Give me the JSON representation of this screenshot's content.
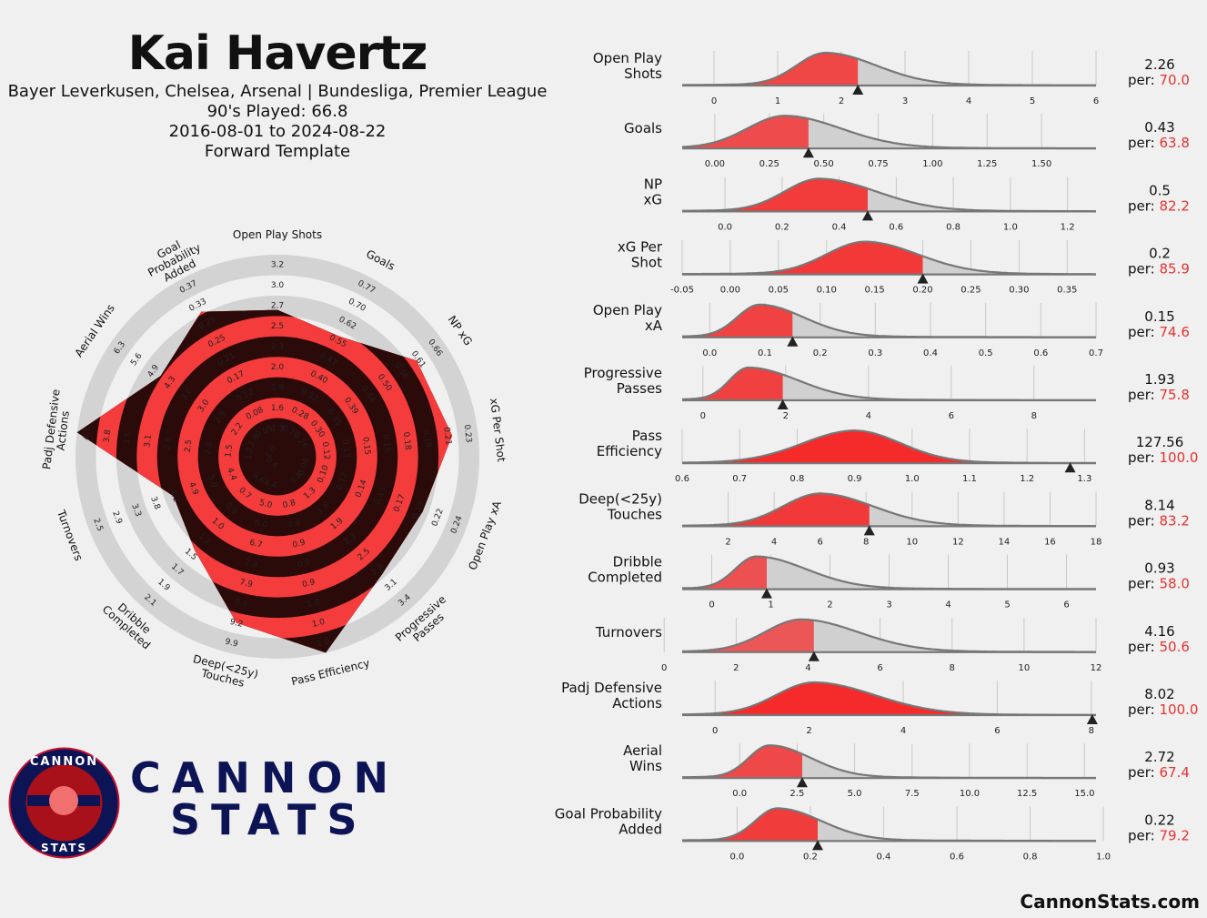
{
  "header": {
    "player": "Kai Havertz",
    "clubs_leagues": "Bayer Leverkusen, Chelsea, Arsenal | Bundesliga, Premier League",
    "nineties": "90's Played: 66.8",
    "dates": "2016-08-01 to 2024-08-22",
    "template": "Forward Template"
  },
  "brand": {
    "line1": "CANNON",
    "line2": "STATS",
    "badge_top": "CANNON",
    "badge_bottom": "STATS",
    "site": "CannonStats.com"
  },
  "colors": {
    "background": "#f0f0f0",
    "radar_fill": "#f53c3c",
    "radar_dark": "#2b0a0a",
    "ring_grey": "#d3d3d3",
    "brand_navy": "#0d1456",
    "badge_red": "#a8101a"
  },
  "chart_data": [
    {
      "type": "radar",
      "metrics": [
        {
          "label": "Open Play Shots",
          "ticks": [
            "1.3",
            "1.6",
            "1.9",
            "2.0",
            "2.3",
            "2.5",
            "2.7",
            "3.0",
            "3.2"
          ],
          "percentile": 70.0
        },
        {
          "label": "Goals",
          "ticks": [
            "0.25",
            "0.28",
            "0.32",
            "0.40",
            "0.47",
            "0.55",
            "0.62",
            "0.70",
            "0.77"
          ],
          "percentile": 63.8
        },
        {
          "label": "NP xG",
          "ticks": [
            "0.26",
            "0.30",
            "0.35",
            "0.39",
            "0.44",
            "0.50",
            "0.56",
            "0.61",
            "0.66"
          ],
          "percentile": 82.2
        },
        {
          "label": "xG Per Shot",
          "ticks": [
            "0.12",
            "0.13",
            "0.15",
            "0.16",
            "0.18",
            "0.19",
            "0.21",
            "0.23"
          ],
          "percentile": 85.9
        },
        {
          "label": "Open Play xA",
          "ticks": [
            "0.08",
            "0.10",
            "0.12",
            "0.14",
            "0.15",
            "0.17",
            "0.19",
            "0.22",
            "0.24"
          ],
          "percentile": 74.6
        },
        {
          "label": "Progressive\nPasses",
          "ticks": [
            "0.8",
            "1.3",
            "1.6",
            "1.9",
            "2.1",
            "2.5",
            "2.8",
            "3.1",
            "3.4"
          ],
          "percentile": 75.8
        },
        {
          "label": "Pass Efficiency",
          "ticks": [
            "0.8",
            "0.8",
            "0.9",
            "0.9",
            "0.9",
            "1.0",
            "1.0",
            "1.0"
          ],
          "percentile": 100.0
        },
        {
          "label": "Deep(<25y)\nTouches",
          "ticks": [
            "4.4",
            "5.0",
            "6.0",
            "6.7",
            "7.3",
            "7.9",
            "8.6",
            "9.2",
            "9.9"
          ],
          "percentile": 83.2
        },
        {
          "label": "Dribble\nCompleted",
          "ticks": [
            "0.4",
            "0.6",
            "0.7",
            "0.9",
            "1.0",
            "1.2",
            "1.5",
            "1.7",
            "1.9",
            "2.1"
          ],
          "percentile": 58.0
        },
        {
          "label": "Turnovers",
          "ticks": [
            "4.4",
            "5.0",
            "4.9",
            "4.2",
            "3.8",
            "3.3",
            "2.9",
            "2.5"
          ],
          "percentile": 50.6
        },
        {
          "label": "Padj Defensive\nActions",
          "ticks": [
            "1.2",
            "1.5",
            "2.0",
            "2.5",
            "2.8",
            "3.1",
            "3.5",
            "3.8",
            "4.1"
          ],
          "percentile": 100.0
        },
        {
          "label": "Aerial Wins",
          "ticks": [
            "1.0",
            "1.6",
            "2.2",
            "2.9",
            "3.0",
            "3.6",
            "4.3",
            "4.9",
            "5.6",
            "6.3"
          ],
          "percentile": 67.4
        },
        {
          "label": "Goal\nProbability\nAdded",
          "ticks": [
            "0.05",
            "0.08",
            "0.12",
            "0.17",
            "0.21",
            "0.25",
            "0.29",
            "0.33",
            "0.37"
          ],
          "percentile": 79.2
        }
      ]
    },
    {
      "type": "density",
      "metrics": [
        {
          "label": "Open Play\nShots",
          "value": "2.26",
          "per_label": "per:",
          "percentile": "70.0",
          "x": 2.26,
          "xlim": [
            -0.5,
            6
          ],
          "ticks": [
            "0",
            "1",
            "2",
            "3",
            "4",
            "5",
            "6"
          ],
          "peak": 1.75,
          "sd_left": 0.45,
          "sd_right": 0.8
        },
        {
          "label": "Goals",
          "value": "0.43",
          "per_label": "per:",
          "percentile": "63.8",
          "x": 0.43,
          "xlim": [
            -0.15,
            1.75
          ],
          "ticks": [
            "0.00",
            "0.25",
            "0.50",
            "0.75",
            "1.00",
            "1.25",
            "1.50"
          ],
          "peak": 0.32,
          "sd_left": 0.17,
          "sd_right": 0.26
        },
        {
          "label": "NP\nxG",
          "value": "0.5",
          "per_label": "per:",
          "percentile": "82.2",
          "x": 0.5,
          "xlim": [
            -0.15,
            1.3
          ],
          "ticks": [
            "0.0",
            "0.2",
            "0.4",
            "0.6",
            "0.8",
            "1.0",
            "1.2"
          ],
          "peak": 0.33,
          "sd_left": 0.12,
          "sd_right": 0.2
        },
        {
          "label": "xG Per\nShot",
          "value": "0.2",
          "per_label": "per:",
          "percentile": "85.9",
          "x": 0.2,
          "xlim": [
            -0.05,
            0.38
          ],
          "ticks": [
            "-0.05",
            "0.00",
            "0.05",
            "0.10",
            "0.15",
            "0.20",
            "0.25",
            "0.30",
            "0.35"
          ],
          "peak": 0.14,
          "sd_left": 0.04,
          "sd_right": 0.055
        },
        {
          "label": "Open Play\nxA",
          "value": "0.15",
          "per_label": "per:",
          "percentile": "74.6",
          "x": 0.15,
          "xlim": [
            -0.05,
            0.7
          ],
          "ticks": [
            "0.0",
            "0.1",
            "0.2",
            "0.3",
            "0.4",
            "0.5",
            "0.6",
            "0.7"
          ],
          "peak": 0.09,
          "sd_left": 0.04,
          "sd_right": 0.08
        },
        {
          "label": "Progressive\nPasses",
          "value": "1.93",
          "per_label": "per:",
          "percentile": "75.8",
          "x": 1.93,
          "xlim": [
            -0.5,
            9.5
          ],
          "ticks": [
            "0",
            "2",
            "4",
            "6",
            "8"
          ],
          "peak": 1.1,
          "sd_left": 0.45,
          "sd_right": 1.2
        },
        {
          "label": "Pass\nEfficiency",
          "value": "127.56",
          "per_label": "per:",
          "percentile": "100.0",
          "x": 1.275,
          "xlim": [
            0.6,
            1.32
          ],
          "ticks": [
            "0.6",
            "0.7",
            "0.8",
            "0.9",
            "1.0",
            "1.1",
            "1.2",
            "1.3"
          ],
          "peak": 0.9,
          "sd_left": 0.09,
          "sd_right": 0.08
        },
        {
          "label": "Deep(<25y)\nTouches",
          "value": "8.14",
          "per_label": "per:",
          "percentile": "83.2",
          "x": 8.14,
          "xlim": [
            0,
            18
          ],
          "ticks": [
            "2",
            "4",
            "6",
            "8",
            "10",
            "12",
            "14",
            "16",
            "18"
          ],
          "peak": 6,
          "sd_left": 1.6,
          "sd_right": 2.3
        },
        {
          "label": "Dribble\nCompleted",
          "value": "0.93",
          "per_label": "per:",
          "percentile": "58.0",
          "x": 0.93,
          "xlim": [
            -0.5,
            6.5
          ],
          "ticks": [
            "0",
            "1",
            "2",
            "3",
            "4",
            "5",
            "6"
          ],
          "peak": 0.75,
          "sd_left": 0.35,
          "sd_right": 0.85
        },
        {
          "label": "Turnovers",
          "value": "4.16",
          "per_label": "per:",
          "percentile": "50.6",
          "x": 4.16,
          "xlim": [
            0.5,
            12
          ],
          "ticks": [
            "0",
            "2",
            "4",
            "6",
            "8",
            "10",
            "12"
          ],
          "peak": 3.8,
          "sd_left": 1.0,
          "sd_right": 1.6
        },
        {
          "label": "Padj Defensive\nActions",
          "value": "8.02",
          "per_label": "per:",
          "percentile": "100.0",
          "x": 8.02,
          "xlim": [
            -0.7,
            8.1
          ],
          "ticks": [
            "0",
            "2",
            "4",
            "6",
            "8"
          ],
          "peak": 2.1,
          "sd_left": 0.8,
          "sd_right": 1.3
        },
        {
          "label": "Aerial\nWins",
          "value": "2.72",
          "per_label": "per:",
          "percentile": "67.4",
          "x": 2.72,
          "xlim": [
            -2.5,
            15.5
          ],
          "ticks": [
            "0.0",
            "2.5",
            "5.0",
            "7.5",
            "10.0",
            "12.5",
            "15.0"
          ],
          "peak": 1.3,
          "sd_left": 0.9,
          "sd_right": 1.8
        },
        {
          "label": "Goal Probability\nAdded",
          "value": "0.22",
          "per_label": "per:",
          "percentile": "79.2",
          "x": 0.22,
          "xlim": [
            -0.15,
            0.98
          ],
          "ticks": [
            "0.0",
            "0.2",
            "0.4",
            "0.6",
            "0.8",
            "1.0"
          ],
          "peak": 0.11,
          "sd_left": 0.06,
          "sd_right": 0.12
        }
      ]
    }
  ]
}
